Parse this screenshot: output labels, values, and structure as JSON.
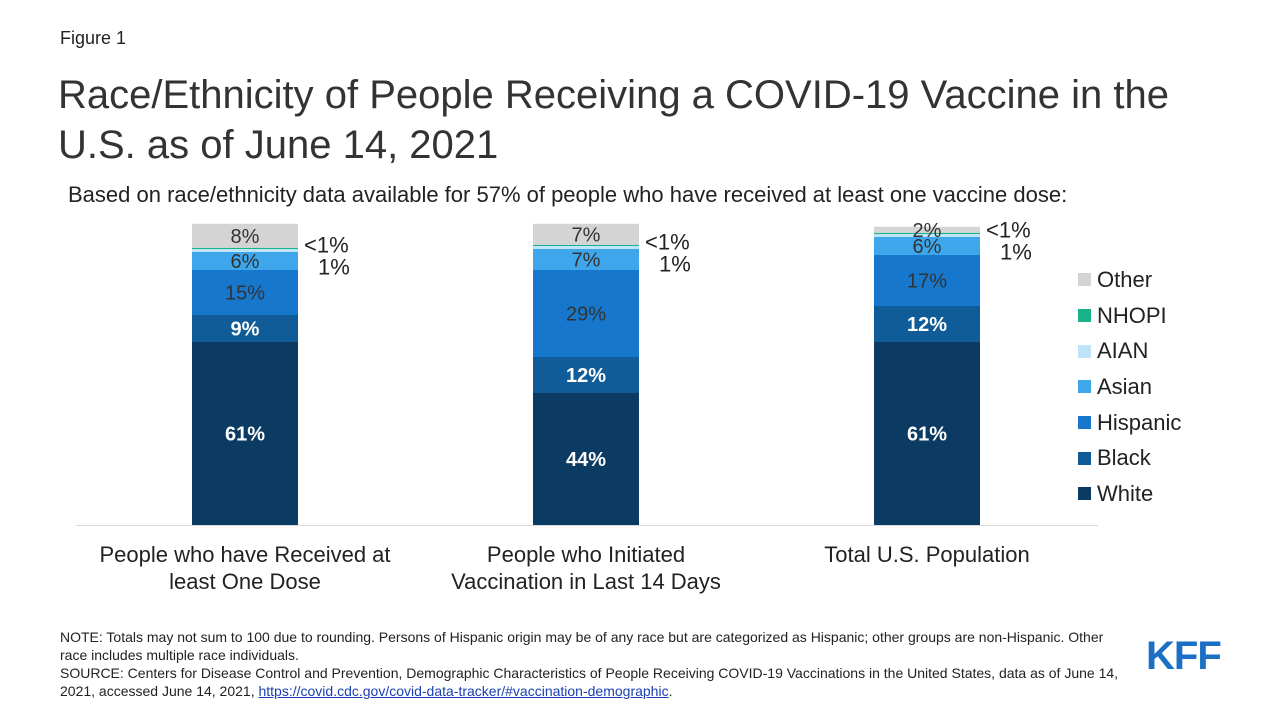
{
  "figure_label": "Figure 1",
  "title": "Race/Ethnicity of People Receiving a COVID-19 Vaccine in the U.S. as of June 14, 2021",
  "subtitle": "Based on race/ethnicity data available for 57% of people who have received at least one vaccine dose:",
  "note": "NOTE: Totals may not sum to 100 due to rounding. Persons of Hispanic origin may be of any race but are categorized as Hispanic; other groups are non-Hispanic. Other race includes multiple race individuals.",
  "source": {
    "text": "SOURCE: Centers for Disease Control and Prevention, Demographic Characteristics of People Receiving COVID-19 Vaccinations in the United States, data as of June 14, 2021, accessed June 14, 2021,",
    "link": "https://covid.cdc.gov/covid-data-tracker/#vaccination-demographic",
    "suffix": "."
  },
  "logo": "KFF",
  "colors": {
    "White": "#0b3a62",
    "Black": "#0f5c98",
    "Hispanic": "#1677cc",
    "Asian": "#3ea6ea",
    "AIAN": "#bfe3f7",
    "NHOPI": "#19b38a",
    "Other": "#d4d4d4",
    "label_dark": "#ffffff",
    "label_light": "#333333"
  },
  "chart_data": {
    "type": "bar",
    "stacked": true,
    "categories": [
      "People who have Received at least One Dose",
      "People who Initiated Vaccination in Last 14 Days",
      "Total U.S. Population"
    ],
    "category_lines": [
      [
        "People who have Received at",
        "least One Dose"
      ],
      [
        "People who Initiated",
        "Vaccination in Last 14 Days"
      ],
      [
        "Total U.S. Population"
      ]
    ],
    "ylim": [
      0,
      100
    ],
    "legend_position": "right",
    "series": [
      {
        "name": "White",
        "values": [
          61,
          44,
          61
        ],
        "labels": [
          "61%",
          "44%",
          "61%"
        ]
      },
      {
        "name": "Black",
        "values": [
          9,
          12,
          12
        ],
        "labels": [
          "9%",
          "12%",
          "12%"
        ]
      },
      {
        "name": "Hispanic",
        "values": [
          15,
          29,
          17
        ],
        "labels": [
          "15%",
          "29%",
          "17%"
        ]
      },
      {
        "name": "Asian",
        "values": [
          6,
          7,
          6
        ],
        "labels": [
          "6%",
          "7%",
          "6%"
        ]
      },
      {
        "name": "AIAN",
        "values": [
          1,
          1,
          1
        ],
        "labels": [
          "1%",
          "1%",
          "1%"
        ]
      },
      {
        "name": "NHOPI",
        "values": [
          0.4,
          0.4,
          0.4
        ],
        "labels": [
          "<1%",
          "<1%",
          "<1%"
        ]
      },
      {
        "name": "Other",
        "values": [
          8,
          7,
          2
        ],
        "labels": [
          "8%",
          "7%",
          "2%"
        ]
      }
    ]
  }
}
